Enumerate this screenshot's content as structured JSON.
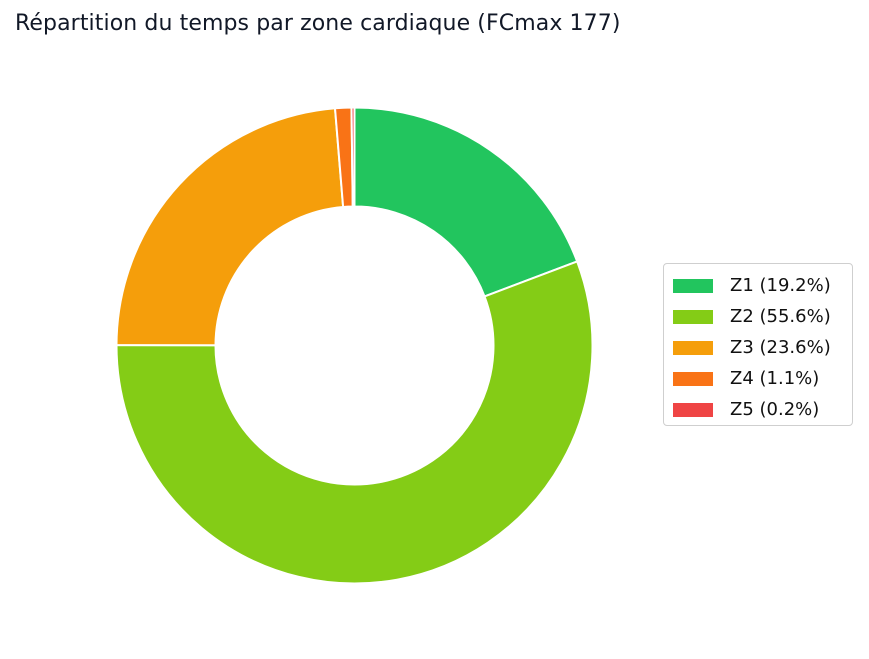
{
  "chart_data": {
    "type": "pie",
    "title": "Répartition du temps par zone cardiaque (FCmax 177)",
    "donut": true,
    "legend_position": "right",
    "slices": [
      {
        "label": "Z1",
        "value": 19.2,
        "legend_label": "Z1 (19.2%)",
        "color": "#22c55e"
      },
      {
        "label": "Z2",
        "value": 55.6,
        "legend_label": "Z2 (55.6%)",
        "color": "#84cc16"
      },
      {
        "label": "Z3",
        "value": 23.6,
        "legend_label": "Z3 (23.6%)",
        "color": "#f59e0b"
      },
      {
        "label": "Z4",
        "value": 1.1,
        "legend_label": "Z4 (1.1%)",
        "color": "#f97316"
      },
      {
        "label": "Z5",
        "value": 0.2,
        "legend_label": "Z5 (0.2%)",
        "color": "#ef4444"
      }
    ]
  }
}
